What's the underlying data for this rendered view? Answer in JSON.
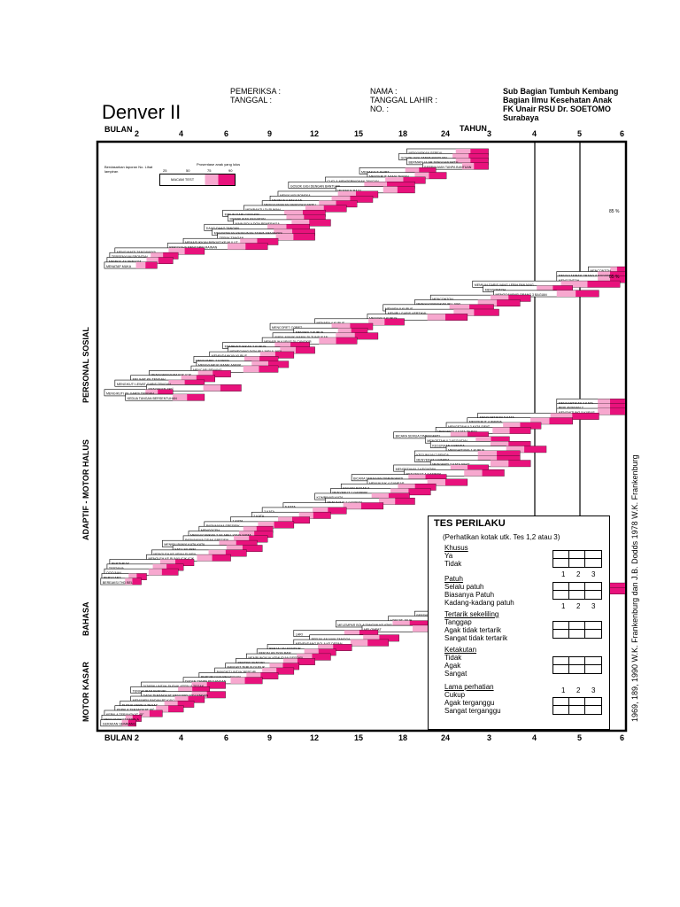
{
  "header": {
    "title": "Denver II",
    "examiner_label": "PEMERIKSA :",
    "date_label": "TANGGAL :",
    "name_label": "NAMA :",
    "dob_label": "TANGGAL LAHIR :",
    "no_label": "NO. :",
    "institution": [
      "Sub Bagian Tumbuh Kembang",
      "Bagian Ilmu Kesehatan Anak",
      "FK Unair RSU Dr. SOETOMO",
      "Surabaya"
    ]
  },
  "axis": {
    "months_label": "BULAN",
    "years_label": "TAHUN",
    "month_ticks": [
      "2",
      "4",
      "6",
      "9",
      "12",
      "15",
      "18",
      "24"
    ],
    "year_ticks": [
      "3",
      "4",
      "5",
      "6"
    ]
  },
  "legend": {
    "percent_label": "Prosentase anak yang lulus",
    "percents": [
      "25",
      "50",
      "75",
      "90"
    ],
    "note": "Berdasarkan laporan No. Lihat lampiran",
    "sample_label": "MACAM TEST"
  },
  "sections": [
    "PERSONAL SOSIAL",
    "ADAPTIF - MOTOR HALUS",
    "BAHASA",
    "MOTOR KASAR"
  ],
  "items": [
    {
      "label": "MENYIAPKAN SEREAL",
      "start": 0.585,
      "end": 0.74
    },
    {
      "label": "GOSOK GIGI TANPA BANTUAN",
      "start": 0.57,
      "end": 0.74
    },
    {
      "label": "BERMAIN ULAR TANGGA/KARTU",
      "start": 0.585,
      "end": 0.74
    },
    {
      "label": "BERPAKAIAN TANPA BANTUAN",
      "start": 0.615,
      "end": 0.74
    },
    {
      "label": "MEMAKAI T-SHIRT",
      "start": 0.495,
      "end": 0.64
    },
    {
      "label": "MENYEBUT NAMA TEMAN",
      "start": 0.51,
      "end": 0.66
    },
    {
      "label": "CUCI & MENGERINGKAN TANGAN",
      "start": 0.43,
      "end": 0.62
    },
    {
      "label": "GOSOK GIGI DENGAN BANTUAN",
      "start": 0.36,
      "end": 0.6
    },
    {
      "label": "MEMAKAI BAJU",
      "start": 0.45,
      "end": 0.6
    },
    {
      "label": "MENYUAPI BONEKA",
      "start": 0.34,
      "end": 0.53
    },
    {
      "label": "MEMBUKA PAKAIAN",
      "start": 0.325,
      "end": 0.52
    },
    {
      "label": "MENGGUNAKAN SENDOK/GARPU",
      "start": 0.31,
      "end": 0.49
    },
    {
      "label": "MEMBANTU DI RUMAH",
      "start": 0.275,
      "end": 0.47
    },
    {
      "label": "MINUM DARI CANGKIR",
      "start": 0.235,
      "end": 0.43
    },
    {
      "label": "MENIRUKAN KEGIATAN",
      "start": 0.245,
      "end": 0.43
    },
    {
      "label": "MAIN BOLA DGN PEMERIKSA",
      "start": 0.255,
      "end": 0.44
    },
    {
      "label": "DAAG-DAAG TANGAN",
      "start": 0.2,
      "end": 0.4
    },
    {
      "label": "MENYATAKAN KEINGINAN TANPA MENANGIS",
      "start": 0.215,
      "end": 0.41
    },
    {
      "label": "TEPUK TANGAN",
      "start": 0.225,
      "end": 0.41
    },
    {
      "label": "MEMASUKKAN BISKUIT KE MULUT",
      "start": 0.16,
      "end": 0.34
    },
    {
      "label": "BERUSAHA MENCAPAI MAINAN",
      "start": 0.13,
      "end": 0.32
    },
    {
      "label": "MENGAMATI TANGANNYA",
      "start": 0.03,
      "end": 0.2
    },
    {
      "label": "TERSENYUM SPONTAN",
      "start": 0.02,
      "end": 0.15
    },
    {
      "label": "MEMBALAS SENYUM",
      "start": 0.015,
      "end": 0.14
    },
    {
      "label": "MENATAP MUKA",
      "start": 0.01,
      "end": 0.11
    },
    {
      "label": "MENCONTOH",
      "start": 0.93,
      "end": 1.0
    },
    {
      "label": "MENGGAMBAR ORANG 6 BAGIAN",
      "start": 0.87,
      "end": 1.0
    },
    {
      "label": "MENCONTOH",
      "start": 0.87,
      "end": 1.0
    },
    {
      "label": "MEMILIH GARIS YANG LEBIH PANJANG",
      "start": 0.71,
      "end": 0.99
    },
    {
      "label": "MENCONTOH",
      "start": 0.73,
      "end": 0.9
    },
    {
      "label": "MENGGAMBAR ORANG 3 BAGIAN",
      "start": 0.75,
      "end": 0.95
    },
    {
      "label": "MENCONTOH",
      "start": 0.63,
      "end": 0.82
    },
    {
      "label": "MENGGOYANGKAN IBU JARI",
      "start": 0.6,
      "end": 0.8
    },
    {
      "label": "MENARA 8 KUBUS",
      "start": 0.54,
      "end": 0.75
    },
    {
      "label": "MENIRU GARIS VERTIKAL",
      "start": 0.545,
      "end": 0.76
    },
    {
      "label": "MENARA 6 KUBUS",
      "start": 0.51,
      "end": 0.7
    },
    {
      "label": "MENARA 4 KUBUS",
      "start": 0.41,
      "end": 0.58
    },
    {
      "label": "MENCORET-CORET",
      "start": 0.325,
      "end": 0.52
    },
    {
      "label": "MENARA 2 KUBUS",
      "start": 0.37,
      "end": 0.51
    },
    {
      "label": "AMBIL MANIK-MANIK DI TUNJUKAN",
      "start": 0.33,
      "end": 0.53
    },
    {
      "label": "MENARUH KUBUS DI CANGKIR",
      "start": 0.31,
      "end": 0.49
    },
    {
      "label": "MEMBENTURKAN 2 KUBUS",
      "start": 0.235,
      "end": 0.4
    },
    {
      "label": "MEMEGANG DGN IBU JARI & JARI",
      "start": 0.245,
      "end": 0.41
    },
    {
      "label": "MEMINDAHKAN KUBUS",
      "start": 0.21,
      "end": 0.37
    },
    {
      "label": "MENGAMBIL 2 KUBUS",
      "start": 0.18,
      "end": 0.34
    },
    {
      "label": "MENGGARUK MANIK-MANIK",
      "start": 0.185,
      "end": 0.36
    },
    {
      "label": "MENCARI BENANG",
      "start": 0.175,
      "end": 0.34
    },
    {
      "label": "MENGGENGGAM ICIK-ICIK",
      "start": 0.095,
      "end": 0.25
    },
    {
      "label": "MELIHAT KE TENGAH",
      "start": 0.06,
      "end": 0.22
    },
    {
      "label": "MENGIKUTI LEWAT GARIS TENGAH",
      "start": 0.03,
      "end": 0.2
    },
    {
      "label": "MENGIKUTI 180°",
      "start": 0.09,
      "end": 0.27
    },
    {
      "label": "MENGIKUTI KE GARIS TENGAH",
      "start": 0.01,
      "end": 0.14
    },
    {
      "label": "KEDUA TANGAN BERSENTUHAN",
      "start": 0.05,
      "end": 0.2
    },
    {
      "label": "MENGARTIKAN 3 KATA",
      "start": 0.87,
      "end": 1.0
    },
    {
      "label": "BERLAWANAN 2",
      "start": 0.87,
      "end": 1.0
    },
    {
      "label": "MENGHITUNG 5 KUBUS",
      "start": 0.87,
      "end": 1.0
    },
    {
      "label": "MENGARTIKAN 5 KATA",
      "start": 0.72,
      "end": 0.95
    },
    {
      "label": "MENYEBUT 4 WARNA",
      "start": 0.7,
      "end": 0.9
    },
    {
      "label": "MENGETAHUI 3 KATA SIFAT",
      "start": 0.66,
      "end": 0.84
    },
    {
      "label": "MENGERTI 4 KATA DEPAN",
      "start": 0.64,
      "end": 0.82
    },
    {
      "label": "BICARA SEMUA DIMENGERTI",
      "start": 0.56,
      "end": 0.74
    },
    {
      "label": "MENGETAHUI 2 KEGIATAN",
      "start": 0.62,
      "end": 0.78
    },
    {
      "label": "KEGUNAAN 3 BENDA",
      "start": 0.63,
      "end": 0.82
    },
    {
      "label": "MENGHITUNG 1 KUBUS",
      "start": 0.66,
      "end": 0.85
    },
    {
      "label": "KEGUNAAN 2 BENDA",
      "start": 0.6,
      "end": 0.8
    },
    {
      "label": "MENYEBUT 1 WARNA",
      "start": 0.6,
      "end": 0.8
    },
    {
      "label": "MENGERTI 2 KATA SIFAT",
      "start": 0.63,
      "end": 0.82
    },
    {
      "label": "MENGETAHUI 2 KEGIATAN",
      "start": 0.56,
      "end": 0.74
    },
    {
      "label": "MENYEBUT 4 GAMBAR",
      "start": 0.58,
      "end": 0.77
    },
    {
      "label": "BICARA SEBAGIAN DIMENGERTI",
      "start": 0.48,
      "end": 0.66
    },
    {
      "label": "MENUNJUK 4 GAMBAR",
      "start": 0.51,
      "end": 0.7
    },
    {
      "label": "BAGIAN BADAN 6",
      "start": 0.46,
      "end": 0.64
    },
    {
      "label": "MENYEBUT 1 GAMBAR",
      "start": 0.44,
      "end": 0.63
    },
    {
      "label": "KOMBINASI KATA",
      "start": 0.41,
      "end": 0.59
    },
    {
      "label": "MENUNJUK 2 GAMBAR",
      "start": 0.43,
      "end": 0.6
    },
    {
      "label": "6 KATA",
      "start": 0.35,
      "end": 0.54
    },
    {
      "label": "3 KATA",
      "start": 0.31,
      "end": 0.47
    },
    {
      "label": "2 KATA",
      "start": 0.29,
      "end": 0.44
    },
    {
      "label": "1 KATA",
      "start": 0.25,
      "end": 0.4
    },
    {
      "label": "PAPA/MAMA SPESIFIK",
      "start": 0.2,
      "end": 0.37
    },
    {
      "label": "MENGOCEH",
      "start": 0.19,
      "end": 0.33
    },
    {
      "label": "MENGUCAPKAN 2 SILABEL YANG SAMA",
      "start": 0.17,
      "end": 0.33
    },
    {
      "label": "PAPA/MAMA TIDAK SPESIFIK",
      "start": 0.16,
      "end": 0.32
    },
    {
      "label": "MENIRU BUNYI KATA-KATA",
      "start": 0.12,
      "end": 0.3
    },
    {
      "label": "SATU SILABEL",
      "start": 0.14,
      "end": 0.31
    },
    {
      "label": "MENOLEH KE ARAH SUARA",
      "start": 0.1,
      "end": 0.28
    },
    {
      "label": "MENOLEH KE BUNYI ICIK-ICIK",
      "start": 0.09,
      "end": 0.25
    },
    {
      "label": "BERTERIAK",
      "start": 0.02,
      "end": 0.18
    },
    {
      "label": "TERTAWA",
      "start": 0.015,
      "end": 0.16
    },
    {
      "label": "OOO/AAH",
      "start": 0.01,
      "end": 0.15
    },
    {
      "label": "BERSUARA",
      "start": 0.005,
      "end": 0.09
    },
    {
      "label": "BEREAKSI THD BEL",
      "start": 0.003,
      "end": 0.08
    },
    {
      "label": "BERJALAN TUMIT KE JARI KAKI",
      "start": 0.86,
      "end": 1.0
    },
    {
      "label": "BERDIRI 1 KAKI 5 DETIK",
      "start": 0.82,
      "end": 1.0
    },
    {
      "label": "BERDIRI 1 KAKI 4 DETIK",
      "start": 0.76,
      "end": 0.96
    },
    {
      "label": "BERDIRI 1 KAKI 3 DETIK",
      "start": 0.72,
      "end": 0.92
    },
    {
      "label": "BERDIRI 1 KAKI 2 DETIK",
      "start": 0.66,
      "end": 0.86
    },
    {
      "label": "MELOMPAT DENGAN 1 KAKI",
      "start": 0.73,
      "end": 0.92
    },
    {
      "label": "BERDIRI 1 KAKI 1 DETIK",
      "start": 0.6,
      "end": 0.8
    },
    {
      "label": "LONCAT JAUH",
      "start": 0.55,
      "end": 0.74
    },
    {
      "label": "MELEMPAR BOLA TANGAN KE ATAS",
      "start": 0.45,
      "end": 0.63
    },
    {
      "label": "MELOMPAT",
      "start": 0.5,
      "end": 0.66
    },
    {
      "label": "LARI",
      "start": 0.37,
      "end": 0.53
    },
    {
      "label": "BERJALAN NAIK TANGGA",
      "start": 0.4,
      "end": 0.57
    },
    {
      "label": "MENENDANG BOLA KE DEPAN",
      "start": 0.37,
      "end": 0.55
    },
    {
      "label": "BERJALAN MUNDUR",
      "start": 0.32,
      "end": 0.48
    },
    {
      "label": "BERJALAN DGN BAIK",
      "start": 0.3,
      "end": 0.45
    },
    {
      "label": "MEMBUNGKUK KEMUDIAN BERDIRI",
      "start": 0.28,
      "end": 0.44
    },
    {
      "label": "BERDIRI SENDIRI",
      "start": 0.26,
      "end": 0.41
    },
    {
      "label": "BANGKIT TERUS DUDUK",
      "start": 0.24,
      "end": 0.38
    },
    {
      "label": "BANGKIT UNTUK BERDIRI",
      "start": 0.22,
      "end": 0.37
    },
    {
      "label": "BERDIRI DGN PEGANGAN",
      "start": 0.19,
      "end": 0.34
    },
    {
      "label": "DUDUK TANPA PEGANGAN",
      "start": 0.16,
      "end": 0.31
    },
    {
      "label": "DITARIK UNTUK DUDUK KEPALA TEGAK",
      "start": 0.08,
      "end": 0.24
    },
    {
      "label": "TENGKURAP SENDIRI",
      "start": 0.06,
      "end": 0.21
    },
    {
      "label": "DADA TERANGKAT MENUMPU PD LENGAN",
      "start": 0.08,
      "end": 0.24
    },
    {
      "label": "MENUMPU BADAN PD KAKI",
      "start": 0.06,
      "end": 0.2
    },
    {
      "label": "DUDUK KEPALA TEGAK",
      "start": 0.04,
      "end": 0.18
    },
    {
      "label": "KEPALA TERANGKAT 90°",
      "start": 0.03,
      "end": 0.16
    },
    {
      "label": "KEPALA TERANGKAT 45°",
      "start": 0.01,
      "end": 0.12
    },
    {
      "label": "MENGANGKAT KEPALA",
      "start": 0.005,
      "end": 0.08
    },
    {
      "label": "GERAKAN SEIMBANG",
      "start": 0.003,
      "end": 0.07
    }
  ],
  "tes_perilaku": {
    "title": "TES PERILAKU",
    "note": "(Perhatikan kotak utk. Tes 1,2 atau 3)",
    "groups": [
      {
        "heading": "Khusus",
        "options": [
          "Ya",
          "Tidak"
        ]
      },
      {
        "heading": "Patuh",
        "options": [
          "Selalu patuh",
          "Biasanya Patuh",
          "Kadang-kadang patuh"
        ]
      },
      {
        "heading": "Tertarik sekeliling",
        "options": [
          "Tanggap",
          "Agak tidak tertarik",
          "Sangat tidak tertarik"
        ]
      },
      {
        "heading": "Ketakutan",
        "options": [
          "Tidak",
          "Agak",
          "Sangat"
        ]
      },
      {
        "heading": "Lama perhatian",
        "options": [
          "Cukup",
          "Agak terganggu",
          "Sangat terganggu"
        ]
      }
    ],
    "box_numbers": [
      "1",
      "2",
      "3"
    ]
  },
  "credit": "1969, 189, 1990 W.K. Frankenburg dan J.B. Dodds 1978 W.K. Frankenburg",
  "colors": {
    "bar": "#e8127c",
    "bar_light": "#f7a8cf",
    "border": "#000000"
  }
}
